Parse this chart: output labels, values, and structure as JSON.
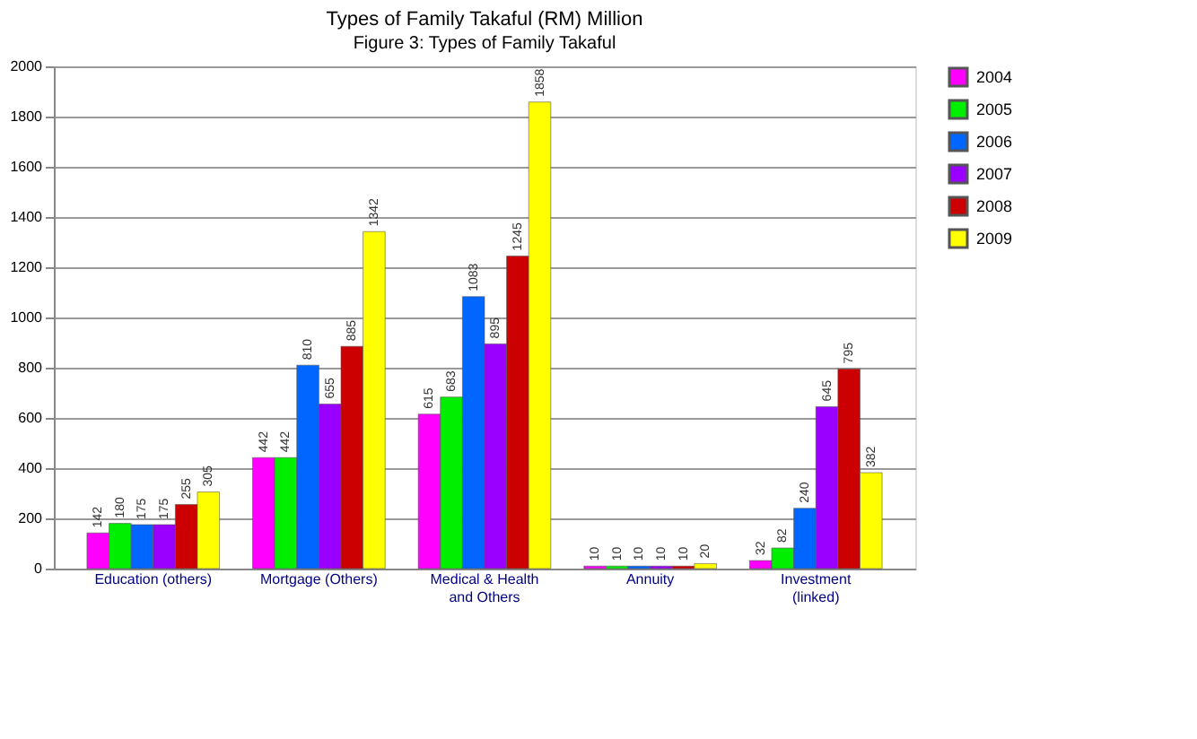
{
  "chart_data": {
    "type": "bar",
    "title": "Types of Family Takaful (RM) Million",
    "annotations": [
      "Figure 3: Types of Family Takaful"
    ],
    "categories": [
      "Education (others)",
      "Mortgage (Others)",
      "Medical & Health and Others",
      "Annuity",
      "Investment (linked)"
    ],
    "series": [
      {
        "name": "2004",
        "color": "#ff00ff",
        "values": [
          142,
          442,
          615,
          10,
          32
        ]
      },
      {
        "name": "2005",
        "color": "#00ee00",
        "values": [
          180,
          442,
          683,
          10,
          82
        ]
      },
      {
        "name": "2006",
        "color": "#0066ff",
        "values": [
          175,
          810,
          1083,
          10,
          240
        ]
      },
      {
        "name": "2007",
        "color": "#9900ff",
        "values": [
          175,
          655,
          895,
          10,
          645
        ]
      },
      {
        "name": "2008",
        "color": "#cc0000",
        "values": [
          255,
          885,
          1245,
          10,
          795
        ]
      },
      {
        "name": "2009",
        "color": "#ffff00",
        "values": [
          305,
          1342,
          1858,
          20,
          382
        ]
      }
    ],
    "ylim": [
      0,
      2000
    ],
    "yticks": [
      0,
      200,
      400,
      600,
      800,
      1000,
      1200,
      1400,
      1600,
      1800,
      2000
    ],
    "grid": "y",
    "legend": "right",
    "data_labels": true
  }
}
